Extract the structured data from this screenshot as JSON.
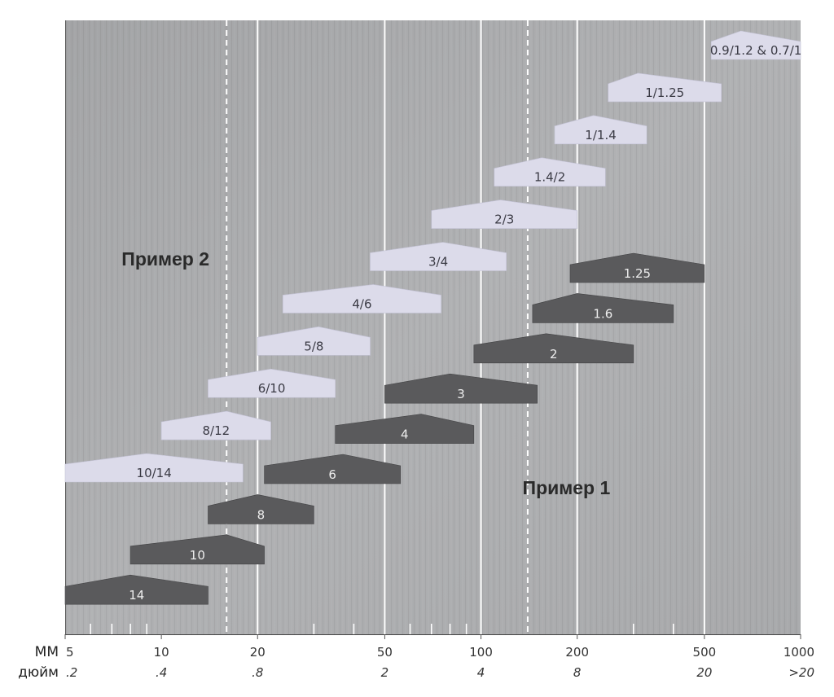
{
  "chart_data": {
    "type": "range-bands",
    "x_scale": "log",
    "x_range": [
      5,
      1000
    ],
    "axes": {
      "mm_label": "MM",
      "inch_label": "дюйм",
      "ticks": [
        {
          "value": 5,
          "mm": "5",
          "inch": ".2"
        },
        {
          "value": 10,
          "mm": "10",
          "inch": ".4"
        },
        {
          "value": 20,
          "mm": "20",
          "inch": ".8"
        },
        {
          "value": 50,
          "mm": "50",
          "inch": "2"
        },
        {
          "value": 100,
          "mm": "100",
          "inch": "4"
        },
        {
          "value": 200,
          "mm": "200",
          "inch": "8"
        },
        {
          "value": 500,
          "mm": "500",
          "inch": "20"
        },
        {
          "value": 1000,
          "mm": "1000",
          "inch": ">20"
        }
      ],
      "minor_ticks": [
        6,
        7,
        8,
        9,
        30,
        40,
        60,
        70,
        80,
        90,
        300,
        400
      ]
    },
    "gridlines_solid": [
      20,
      50,
      100,
      200,
      500
    ],
    "gridlines_dashed": [
      16,
      140
    ],
    "annotations": [
      {
        "id": "example-2",
        "text": "Пример 2"
      },
      {
        "id": "example-1",
        "text": "Пример 1"
      }
    ],
    "colors": {
      "light_band": "#dcdbea",
      "dark_band": "#5a5a5c",
      "background": "#a9aaac"
    },
    "series": [
      {
        "group": "light",
        "bands": [
          {
            "label": "0.9/1.2 & 0.7/1",
            "min": 525,
            "max": 1000,
            "peak": 650
          },
          {
            "label": "1/1.25",
            "min": 250,
            "max": 565,
            "peak": 310
          },
          {
            "label": "1/1.4",
            "min": 170,
            "max": 330,
            "peak": 225
          },
          {
            "label": "1.4/2",
            "min": 110,
            "max": 245,
            "peak": 155
          },
          {
            "label": "2/3",
            "min": 70,
            "max": 200,
            "peak": 115
          },
          {
            "label": "3/4",
            "min": 45,
            "max": 120,
            "peak": 76
          },
          {
            "label": "4/6",
            "min": 24,
            "max": 75,
            "peak": 46
          },
          {
            "label": "5/8",
            "min": 20,
            "max": 45,
            "peak": 31
          },
          {
            "label": "6/10",
            "min": 14,
            "max": 35,
            "peak": 22
          },
          {
            "label": "8/12",
            "min": 10,
            "max": 22,
            "peak": 16
          },
          {
            "label": "10/14",
            "min": 5,
            "max": 18,
            "peak": 9
          }
        ]
      },
      {
        "group": "dark",
        "bands": [
          {
            "label": "1.25",
            "min": 190,
            "max": 500,
            "peak": 300
          },
          {
            "label": "1.6",
            "min": 145,
            "max": 400,
            "peak": 200
          },
          {
            "label": "2",
            "min": 95,
            "max": 300,
            "peak": 160
          },
          {
            "label": "3",
            "min": 50,
            "max": 150,
            "peak": 80
          },
          {
            "label": "4",
            "min": 35,
            "max": 95,
            "peak": 65
          },
          {
            "label": "6",
            "min": 21,
            "max": 56,
            "peak": 37
          },
          {
            "label": "8",
            "min": 14,
            "max": 30,
            "peak": 20
          },
          {
            "label": "10",
            "min": 8,
            "max": 21,
            "peak": 16
          },
          {
            "label": "14",
            "min": 5,
            "max": 14,
            "peak": 8
          }
        ]
      }
    ]
  }
}
